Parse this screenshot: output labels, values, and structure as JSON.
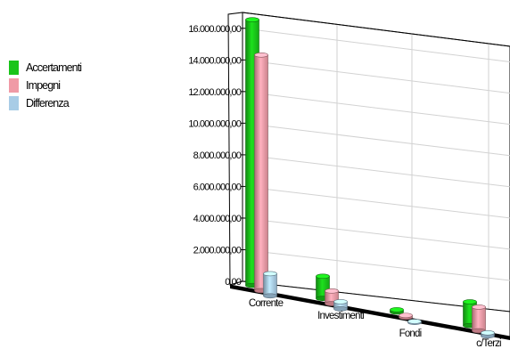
{
  "chart_data": {
    "type": "bar",
    "categories": [
      "Corrente",
      "Investimenti",
      "Fondi",
      "c/Terzi"
    ],
    "series": [
      {
        "name": "Accertamenti",
        "color": "#19c419",
        "values": [
          16800000,
          1400000,
          150000,
          1500000
        ]
      },
      {
        "name": "Impegni",
        "color": "#f09aa6",
        "values": [
          14900000,
          800000,
          120000,
          1500000
        ]
      },
      {
        "name": "Differenza",
        "color": "#a8cce6",
        "values": [
          1400000,
          450000,
          70000,
          200000
        ]
      }
    ],
    "y_ticks": [
      "0,00",
      "2.000.000,00",
      "4.000.000,00",
      "6.000.000,00",
      "8.000.000,00",
      "10.000.000,00",
      "12.000.000,00",
      "14.000.000,00",
      "16.000.000,00"
    ],
    "ylim": [
      0,
      17000000
    ],
    "grid": true,
    "legend_position": "left"
  }
}
